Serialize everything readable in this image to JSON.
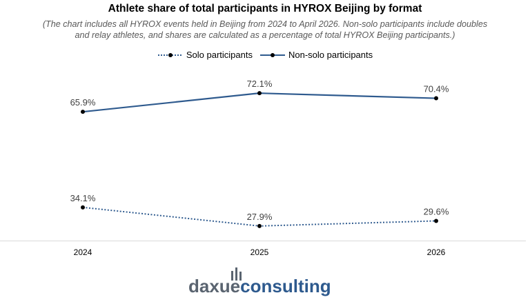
{
  "chart_data": {
    "type": "line",
    "title": "Athlete share of total participants in HYROX Beijing by format",
    "subtitle": "(The chart includes all HYROX events held in Beijing from 2024 to April 2026. Non-solo participants include doubles\nand relay athletes, and shares are calculated as a percentage of total HYROX Beijing participants.)",
    "categories": [
      "2024",
      "2025",
      "2026"
    ],
    "ylim": [
      0,
      100
    ],
    "grid": false,
    "legend_position": "top-center",
    "series": [
      {
        "name": "Solo participants",
        "values": [
          34.1,
          27.9,
          29.6
        ],
        "labels": [
          "34.1%",
          "27.9%",
          "29.6%"
        ],
        "line_style": "dotted",
        "color": "#2e5a8e"
      },
      {
        "name": "Non-solo participants",
        "values": [
          65.9,
          72.1,
          70.4
        ],
        "labels": [
          "65.9%",
          "72.1%",
          "70.4%"
        ],
        "line_style": "solid",
        "color": "#2e5a8e"
      }
    ]
  },
  "logo": {
    "text_dark": "daxue",
    "text_accent": "consulting",
    "color_dark": "#5a6470",
    "color_accent": "#2e5a8e"
  }
}
